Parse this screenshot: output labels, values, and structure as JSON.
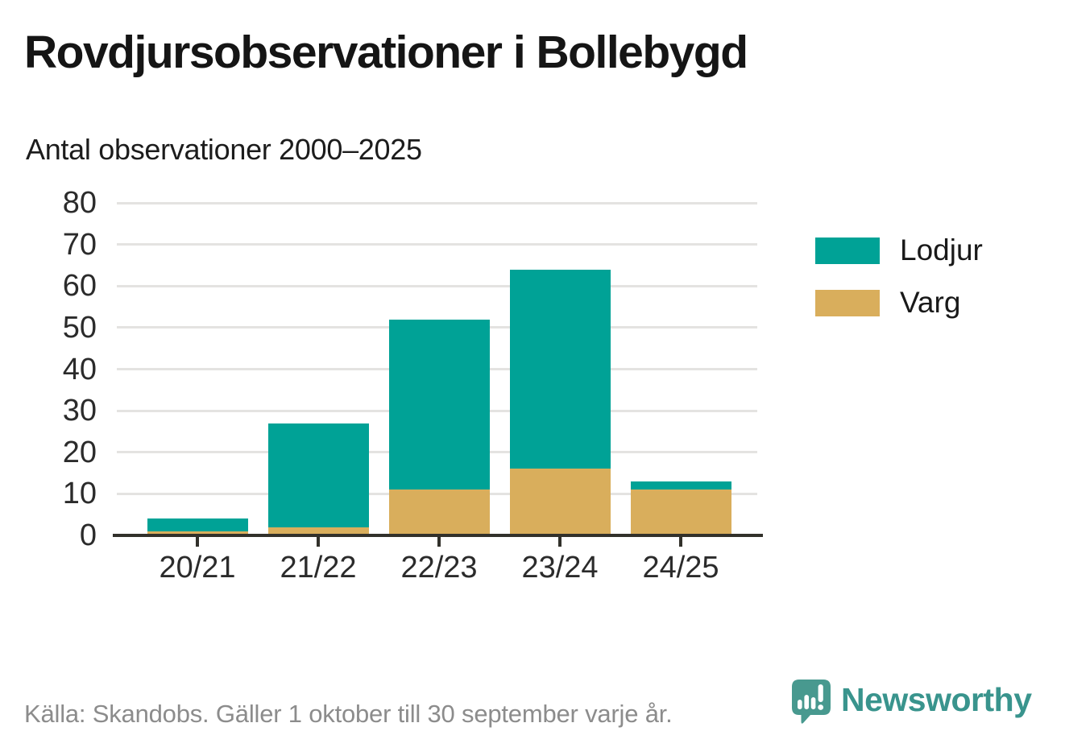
{
  "header": {
    "title": "Rovdjursobservationer i Bollebygd",
    "subtitle": "Antal observationer 2000–2025"
  },
  "chart_data": {
    "type": "bar",
    "stacked": true,
    "title": "Rovdjursobservationer i Bollebygd",
    "subtitle": "Antal observationer 2000–2025",
    "categories": [
      "20/21",
      "21/22",
      "22/23",
      "23/24",
      "24/25"
    ],
    "series": [
      {
        "name": "Varg",
        "color": "#D9AE5C",
        "values": [
          1,
          2,
          11,
          16,
          11
        ]
      },
      {
        "name": "Lodjur",
        "color": "#00A296",
        "values": [
          3,
          25,
          41,
          48,
          2
        ]
      }
    ],
    "stack_order": "bottom_to_top",
    "totals": [
      4,
      27,
      52,
      64,
      13
    ],
    "xlabel": "",
    "ylabel": "",
    "ylim": [
      0,
      80
    ],
    "yticks": [
      0,
      10,
      20,
      30,
      40,
      50,
      60,
      70,
      80
    ],
    "grid": true,
    "legend_order": [
      "Lodjur",
      "Varg"
    ],
    "legend_position": "right"
  },
  "footer": {
    "source": "Källa: Skandobs. Gäller 1 oktober till 30 september varje år.",
    "brand": "Newsworthy",
    "brand_color": "#39948D",
    "icon_color": "#48998F"
  }
}
